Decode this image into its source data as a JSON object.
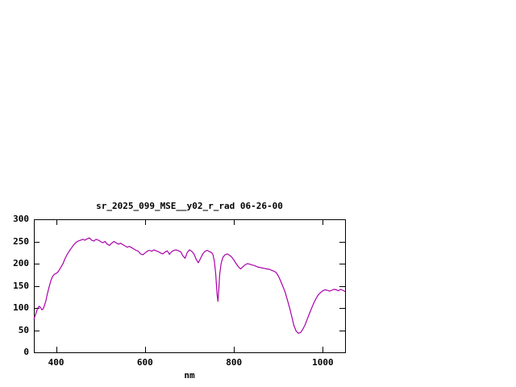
{
  "chart_data": {
    "type": "line",
    "title": "sr_2025_099_MSE__y02_r_rad 06-26-00",
    "xlabel": "nm",
    "ylabel": "",
    "xlim": [
      350,
      1050
    ],
    "ylim": [
      0,
      300
    ],
    "x_ticks": [
      400,
      600,
      800,
      1000
    ],
    "y_ticks": [
      0,
      50,
      100,
      150,
      200,
      250,
      300
    ],
    "grid": false,
    "legend": "none",
    "line_color": "#aa00aa",
    "axis_color": "#000000",
    "background_color": "#ffffff",
    "series": [
      {
        "name": "sr_2025_099_MSE__y02_r_rad",
        "points": [
          [
            350,
            75
          ],
          [
            353,
            83
          ],
          [
            356,
            92
          ],
          [
            359,
            100
          ],
          [
            362,
            104
          ],
          [
            365,
            101
          ],
          [
            368,
            96
          ],
          [
            371,
            98
          ],
          [
            374,
            106
          ],
          [
            377,
            116
          ],
          [
            380,
            130
          ],
          [
            384,
            146
          ],
          [
            388,
            161
          ],
          [
            392,
            171
          ],
          [
            396,
            176
          ],
          [
            400,
            178
          ],
          [
            404,
            181
          ],
          [
            408,
            187
          ],
          [
            412,
            194
          ],
          [
            416,
            201
          ],
          [
            420,
            211
          ],
          [
            425,
            221
          ],
          [
            430,
            229
          ],
          [
            435,
            236
          ],
          [
            440,
            243
          ],
          [
            445,
            248
          ],
          [
            450,
            251
          ],
          [
            455,
            253
          ],
          [
            460,
            255
          ],
          [
            465,
            253
          ],
          [
            470,
            256
          ],
          [
            475,
            258
          ],
          [
            480,
            253
          ],
          [
            485,
            251
          ],
          [
            490,
            255
          ],
          [
            495,
            253
          ],
          [
            500,
            250
          ],
          [
            505,
            247
          ],
          [
            510,
            250
          ],
          [
            515,
            244
          ],
          [
            520,
            241
          ],
          [
            525,
            246
          ],
          [
            530,
            250
          ],
          [
            535,
            247
          ],
          [
            540,
            244
          ],
          [
            545,
            246
          ],
          [
            550,
            243
          ],
          [
            555,
            240
          ],
          [
            560,
            237
          ],
          [
            565,
            239
          ],
          [
            570,
            236
          ],
          [
            575,
            233
          ],
          [
            580,
            230
          ],
          [
            585,
            228
          ],
          [
            590,
            222
          ],
          [
            595,
            220
          ],
          [
            600,
            224
          ],
          [
            605,
            228
          ],
          [
            610,
            230
          ],
          [
            615,
            228
          ],
          [
            620,
            231
          ],
          [
            625,
            229
          ],
          [
            630,
            227
          ],
          [
            635,
            224
          ],
          [
            640,
            222
          ],
          [
            645,
            226
          ],
          [
            650,
            229
          ],
          [
            655,
            221
          ],
          [
            660,
            227
          ],
          [
            665,
            230
          ],
          [
            670,
            231
          ],
          [
            675,
            229
          ],
          [
            680,
            227
          ],
          [
            685,
            218
          ],
          [
            690,
            212
          ],
          [
            695,
            225
          ],
          [
            700,
            231
          ],
          [
            705,
            228
          ],
          [
            710,
            222
          ],
          [
            715,
            210
          ],
          [
            720,
            202
          ],
          [
            725,
            212
          ],
          [
            730,
            222
          ],
          [
            735,
            228
          ],
          [
            740,
            230
          ],
          [
            745,
            227
          ],
          [
            750,
            225
          ],
          [
            753,
            220
          ],
          [
            756,
            205
          ],
          [
            759,
            178
          ],
          [
            762,
            132
          ],
          [
            764,
            115
          ],
          [
            766,
            142
          ],
          [
            768,
            176
          ],
          [
            771,
            200
          ],
          [
            775,
            214
          ],
          [
            780,
            220
          ],
          [
            785,
            222
          ],
          [
            790,
            219
          ],
          [
            795,
            215
          ],
          [
            800,
            208
          ],
          [
            805,
            200
          ],
          [
            810,
            193
          ],
          [
            815,
            188
          ],
          [
            820,
            193
          ],
          [
            825,
            197
          ],
          [
            830,
            200
          ],
          [
            835,
            199
          ],
          [
            840,
            197
          ],
          [
            845,
            196
          ],
          [
            850,
            194
          ],
          [
            855,
            192
          ],
          [
            860,
            191
          ],
          [
            865,
            190
          ],
          [
            870,
            189
          ],
          [
            875,
            188
          ],
          [
            880,
            187
          ],
          [
            885,
            185
          ],
          [
            890,
            183
          ],
          [
            895,
            180
          ],
          [
            900,
            172
          ],
          [
            905,
            161
          ],
          [
            910,
            149
          ],
          [
            915,
            136
          ],
          [
            920,
            119
          ],
          [
            925,
            101
          ],
          [
            930,
            81
          ],
          [
            935,
            60
          ],
          [
            940,
            48
          ],
          [
            945,
            43
          ],
          [
            950,
            45
          ],
          [
            955,
            52
          ],
          [
            960,
            62
          ],
          [
            965,
            75
          ],
          [
            970,
            88
          ],
          [
            975,
            100
          ],
          [
            980,
            112
          ],
          [
            985,
            122
          ],
          [
            990,
            130
          ],
          [
            995,
            135
          ],
          [
            1000,
            139
          ],
          [
            1005,
            141
          ],
          [
            1010,
            140
          ],
          [
            1015,
            138
          ],
          [
            1020,
            140
          ],
          [
            1025,
            142
          ],
          [
            1030,
            141
          ],
          [
            1035,
            139
          ],
          [
            1040,
            142
          ],
          [
            1045,
            140
          ],
          [
            1050,
            137
          ]
        ]
      }
    ]
  }
}
